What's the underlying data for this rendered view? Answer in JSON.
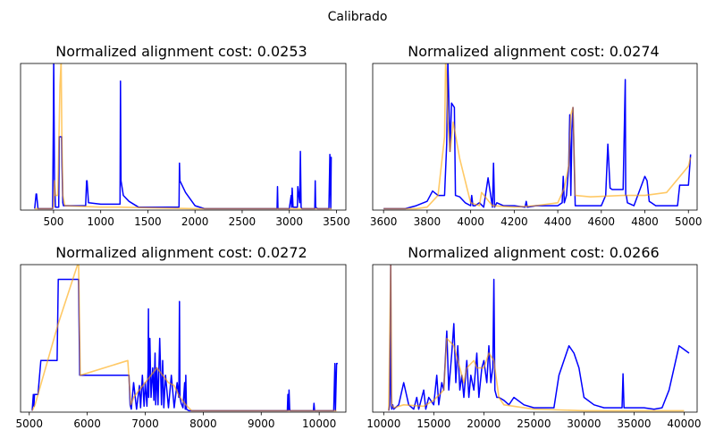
{
  "figure": {
    "suptitle": "Calibrado"
  },
  "colors": {
    "blue_series": "#0000ff",
    "orange_series": "#ffa500",
    "axes": "#000000"
  },
  "chart_data": [
    {
      "type": "line",
      "title": "Normalized alignment cost: 0.0253",
      "xlabel": "",
      "ylabel": "",
      "xlim": [
        150,
        3600
      ],
      "ylim": [
        0,
        1
      ],
      "xticks": [
        500,
        1000,
        1500,
        2000,
        2500,
        3000,
        3500
      ],
      "xtick_labels": [
        "500",
        "1000",
        "1500",
        "2000",
        "2500",
        "3000",
        "3500"
      ],
      "series": [
        {
          "name": "series-blue",
          "color": "#0000ff",
          "x": [
            300,
            315,
            320,
            335,
            490,
            498,
            502,
            510,
            520,
            555,
            560,
            585,
            590,
            598,
            605,
            630,
            840,
            850,
            855,
            870,
            1000,
            1205,
            1210,
            1215,
            1240,
            1300,
            1400,
            1830,
            1835,
            1840,
            1900,
            2000,
            2100,
            2500,
            2870,
            2875,
            2880,
            3000,
            3020,
            3025,
            3030,
            3040,
            3085,
            3090,
            3110,
            3118,
            3125,
            3135,
            3200,
            3270,
            3275,
            3280,
            3300,
            3420,
            3430,
            3440,
            3445,
            3450
          ],
          "y": [
            0.01,
            0.11,
            0.11,
            0.01,
            0.01,
            0.6,
            1.02,
            0.2,
            0.02,
            0.02,
            0.5,
            0.5,
            0.3,
            0.05,
            0.03,
            0.03,
            0.03,
            0.2,
            0.2,
            0.05,
            0.04,
            0.04,
            0.88,
            0.2,
            0.1,
            0.06,
            0.02,
            0.02,
            0.32,
            0.2,
            0.12,
            0.03,
            0.01,
            0.01,
            0.01,
            0.16,
            0.01,
            0.01,
            0.1,
            0.02,
            0.15,
            0.02,
            0.02,
            0.16,
            0.05,
            0.4,
            0.02,
            0.01,
            0.01,
            0.01,
            0.2,
            0.02,
            0.01,
            0.01,
            0.38,
            0.01,
            0.36,
            0.36
          ]
        },
        {
          "name": "series-orange",
          "color": "#ffa500",
          "x": [
            300,
            480,
            500,
            510,
            520,
            545,
            558,
            568,
            580,
            588,
            598,
            620,
            1000,
            1200,
            2000,
            2500,
            3000,
            3100,
            3300,
            3450
          ],
          "y": [
            0.01,
            0.01,
            0.02,
            0.2,
            0.1,
            0.1,
            0.5,
            0.85,
            1.02,
            0.5,
            0.1,
            0.03,
            0.02,
            0.02,
            0.01,
            0.01,
            0.01,
            0.01,
            0.01,
            0.01
          ]
        }
      ]
    },
    {
      "type": "line",
      "title": "Normalized alignment cost: 0.0274",
      "xlabel": "",
      "ylabel": "",
      "xlim": [
        3550,
        5040
      ],
      "ylim": [
        0,
        1
      ],
      "xticks": [
        3600,
        3800,
        4000,
        4200,
        4400,
        4600,
        4800,
        5000
      ],
      "xtick_labels": [
        "3600",
        "3800",
        "4000",
        "4200",
        "4400",
        "4600",
        "4800",
        "5000"
      ],
      "series": [
        {
          "name": "series-blue",
          "color": "#0000ff",
          "x": [
            3600,
            3700,
            3750,
            3800,
            3825,
            3850,
            3880,
            3890,
            3895,
            3905,
            3912,
            3925,
            3930,
            3950,
            3975,
            4000,
            4005,
            4010,
            4020,
            4040,
            4060,
            4080,
            4100,
            4105,
            4110,
            4120,
            4150,
            4200,
            4250,
            4255,
            4260,
            4300,
            4400,
            4420,
            4425,
            4430,
            4440,
            4450,
            4455,
            4460,
            4465,
            4470,
            4480,
            4500,
            4550,
            4600,
            4620,
            4630,
            4640,
            4650,
            4700,
            4710,
            4712,
            4715,
            4720,
            4750,
            4800,
            4810,
            4820,
            4830,
            4850,
            4900,
            4950,
            4960,
            5000,
            5010
          ],
          "y": [
            0.01,
            0.01,
            0.03,
            0.06,
            0.13,
            0.1,
            0.1,
            0.45,
            1.02,
            0.4,
            0.73,
            0.7,
            0.1,
            0.09,
            0.05,
            0.03,
            0.1,
            0.03,
            0.03,
            0.05,
            0.02,
            0.22,
            0.02,
            0.32,
            0.02,
            0.05,
            0.03,
            0.03,
            0.02,
            0.06,
            0.02,
            0.03,
            0.03,
            0.05,
            0.23,
            0.05,
            0.1,
            0.3,
            0.65,
            0.1,
            0.55,
            0.7,
            0.03,
            0.03,
            0.03,
            0.03,
            0.1,
            0.45,
            0.15,
            0.14,
            0.14,
            0.89,
            0.1,
            0.1,
            0.05,
            0.03,
            0.23,
            0.2,
            0.06,
            0.05,
            0.03,
            0.03,
            0.03,
            0.17,
            0.17,
            0.38
          ]
        },
        {
          "name": "series-orange",
          "color": "#ffa500",
          "x": [
            3600,
            3750,
            3800,
            3850,
            3880,
            3885,
            3890,
            3895,
            3905,
            3920,
            3950,
            4000,
            4040,
            4050,
            4100,
            4200,
            4300,
            4400,
            4430,
            4450,
            4460,
            4470,
            4480,
            4550,
            4700,
            4800,
            4900,
            5000,
            5010
          ],
          "y": [
            0.01,
            0.01,
            0.02,
            0.1,
            0.5,
            1.02,
            0.9,
            0.6,
            0.4,
            0.6,
            0.35,
            0.05,
            0.03,
            0.12,
            0.03,
            0.02,
            0.03,
            0.05,
            0.15,
            0.3,
            0.65,
            0.7,
            0.1,
            0.09,
            0.1,
            0.1,
            0.12,
            0.3,
            0.36
          ]
        }
      ]
    },
    {
      "type": "line",
      "title": "Normalized alignment cost: 0.0272",
      "xlabel": "",
      "ylabel": "",
      "xlim": [
        4850,
        10460
      ],
      "ylim": [
        0,
        1
      ],
      "xticks": [
        5000,
        6000,
        7000,
        8000,
        9000,
        10000
      ],
      "xtick_labels": [
        "5000",
        "6000",
        "7000",
        "8000",
        "9000",
        "10000"
      ],
      "series": [
        {
          "name": "series-blue",
          "color": "#0000ff",
          "x": [
            5050,
            5070,
            5080,
            5090,
            5150,
            5200,
            5210,
            5480,
            5500,
            5510,
            5850,
            5870,
            5880,
            6720,
            6740,
            6760,
            6800,
            6850,
            6900,
            6920,
            6950,
            6980,
            7000,
            7030,
            7050,
            7055,
            7060,
            7080,
            7100,
            7130,
            7150,
            7170,
            7180,
            7200,
            7220,
            7250,
            7280,
            7300,
            7320,
            7350,
            7400,
            7450,
            7500,
            7550,
            7580,
            7590,
            7600,
            7620,
            7650,
            7680,
            7690,
            7700,
            7710,
            7750,
            7800,
            8000,
            9000,
            9450,
            9460,
            9470,
            9480,
            9490,
            9500,
            9520,
            9600,
            9850,
            9900,
            9910,
            9920,
            10000,
            10250,
            10270,
            10280,
            10300,
            10320
          ],
          "y": [
            0.01,
            0.12,
            0.04,
            0.12,
            0.12,
            0.35,
            0.35,
            0.35,
            0.9,
            0.9,
            0.9,
            0.25,
            0.25,
            0.25,
            0.05,
            0.02,
            0.2,
            0.02,
            0.18,
            0.03,
            0.25,
            0.04,
            0.2,
            0.04,
            0.3,
            0.7,
            0.1,
            0.5,
            0.1,
            0.3,
            0.08,
            0.4,
            0.05,
            0.3,
            0.05,
            0.5,
            0.05,
            0.35,
            0.03,
            0.25,
            0.03,
            0.25,
            0.03,
            0.2,
            0.1,
            0.75,
            0.1,
            0.06,
            0.03,
            0.2,
            0.02,
            0.25,
            0.02,
            0.01,
            0.01,
            0.01,
            0.01,
            0.01,
            0.12,
            0.01,
            0.15,
            0.02,
            0.01,
            0.01,
            0.01,
            0.01,
            0.01,
            0.06,
            0.01,
            0.01,
            0.01,
            0.33,
            0.01,
            0.33,
            0.33
          ]
        },
        {
          "name": "series-orange",
          "color": "#ffa500",
          "x": [
            5050,
            5100,
            5500,
            5850,
            5880,
            6700,
            6750,
            6800,
            6900,
            7000,
            7100,
            7200,
            7300,
            7400,
            7500,
            7600,
            7700,
            7800,
            8000,
            9000,
            10000,
            10300
          ],
          "y": [
            0.01,
            0.05,
            0.6,
            1.02,
            0.25,
            0.35,
            0.05,
            0.1,
            0.15,
            0.2,
            0.25,
            0.3,
            0.25,
            0.2,
            0.18,
            0.1,
            0.05,
            0.01,
            0.01,
            0.01,
            0.01,
            0.01
          ]
        }
      ]
    },
    {
      "type": "line",
      "title": "Normalized alignment cost: 0.0266",
      "xlabel": "",
      "ylabel": "",
      "xlim": [
        8900,
        41300
      ],
      "ylim": [
        0,
        1
      ],
      "xticks": [
        10000,
        15000,
        20000,
        25000,
        30000,
        35000,
        40000
      ],
      "xtick_labels": [
        "10000",
        "15000",
        "20000",
        "25000",
        "30000",
        "35000",
        "40000"
      ],
      "series": [
        {
          "name": "series-blue",
          "color": "#0000ff",
          "x": [
            10500,
            10600,
            10700,
            10750,
            10800,
            10900,
            11000,
            11500,
            12000,
            12500,
            13000,
            13300,
            13500,
            14000,
            14200,
            14500,
            15000,
            15300,
            15500,
            15800,
            16000,
            16300,
            16500,
            16800,
            17000,
            17200,
            17400,
            17600,
            17800,
            18000,
            18300,
            18500,
            18700,
            19000,
            19300,
            19500,
            19800,
            20000,
            20300,
            20500,
            20700,
            20900,
            21000,
            21100,
            21300,
            21500,
            22000,
            22500,
            23000,
            24000,
            25000,
            26000,
            27000,
            27500,
            28500,
            29000,
            29500,
            30000,
            31000,
            32000,
            33000,
            33800,
            33900,
            34000,
            35000,
            36000,
            37000,
            37800,
            38500,
            39500,
            40500
          ],
          "y": [
            0.01,
            0.05,
            1.02,
            0.12,
            0.02,
            0.05,
            0.02,
            0.05,
            0.2,
            0.05,
            0.02,
            0.1,
            0.02,
            0.15,
            0.02,
            0.1,
            0.05,
            0.25,
            0.05,
            0.2,
            0.15,
            0.55,
            0.15,
            0.4,
            0.6,
            0.2,
            0.45,
            0.15,
            0.25,
            0.1,
            0.35,
            0.1,
            0.25,
            0.15,
            0.4,
            0.1,
            0.3,
            0.35,
            0.2,
            0.45,
            0.2,
            0.3,
            0.9,
            0.15,
            0.1,
            0.1,
            0.08,
            0.05,
            0.1,
            0.05,
            0.03,
            0.03,
            0.03,
            0.25,
            0.45,
            0.4,
            0.3,
            0.1,
            0.05,
            0.03,
            0.03,
            0.03,
            0.26,
            0.03,
            0.03,
            0.03,
            0.02,
            0.03,
            0.15,
            0.45,
            0.4
          ]
        },
        {
          "name": "series-orange",
          "color": "#ffa500",
          "x": [
            10500,
            10700,
            10800,
            11000,
            12000,
            14000,
            15000,
            16000,
            16300,
            17000,
            18000,
            18300,
            19000,
            19300,
            20000,
            20500,
            21000,
            21500,
            22000,
            25000,
            30000,
            35000,
            40000
          ],
          "y": [
            0.01,
            1.02,
            0.05,
            0.03,
            0.05,
            0.04,
            0.08,
            0.15,
            0.5,
            0.45,
            0.2,
            0.3,
            0.35,
            0.3,
            0.3,
            0.4,
            0.35,
            0.1,
            0.05,
            0.02,
            0.01,
            0.01,
            0.01
          ]
        }
      ]
    }
  ]
}
